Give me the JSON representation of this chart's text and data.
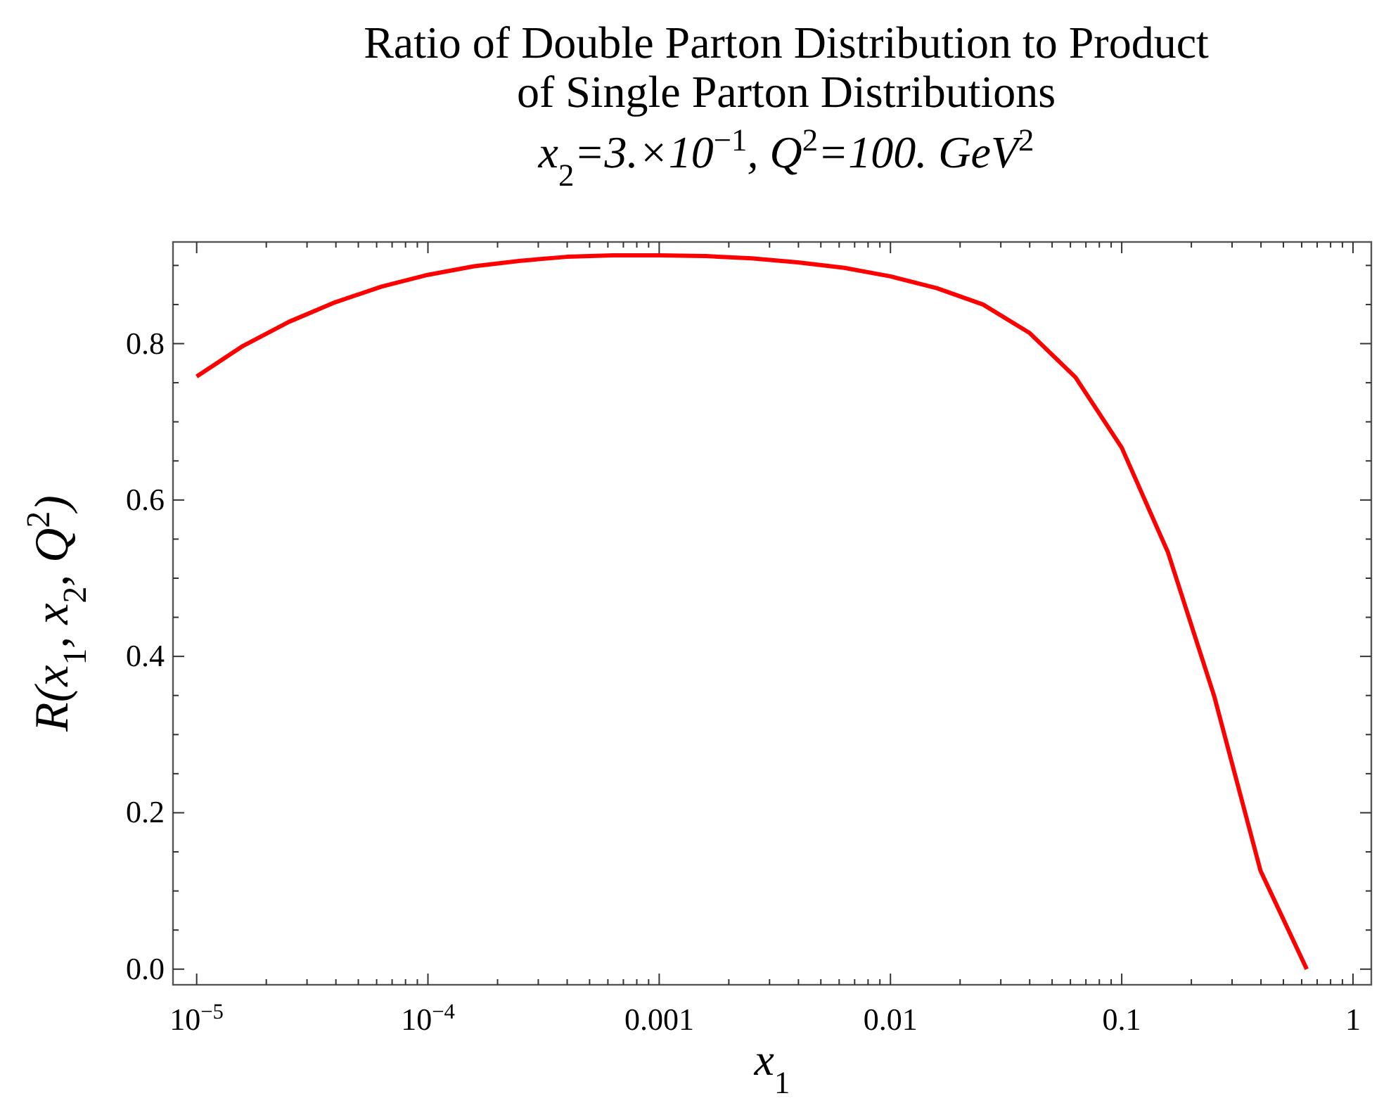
{
  "chart_data": {
    "type": "line",
    "title": "Ratio of Double Parton Distribution to Product\nof Single Parton Distributions",
    "subtitle": "x$_{2}$=3.×10$^{−1}$, Q$^{2}$=100. GeV$^{2}$",
    "xlabel": "x$_{1}$",
    "ylabel": "R(x$_{1}$, x$_{2}$, Q$^{2}$)",
    "log": "x",
    "grid": false,
    "marker": "none",
    "line_style": "solid",
    "x": [
      1e-05,
      1.585e-05,
      2.512e-05,
      3.981e-05,
      6.31e-05,
      0.0001,
      0.0001585,
      0.0002512,
      0.0003981,
      0.000631,
      0.001,
      0.001585,
      0.002512,
      0.003981,
      0.00631,
      0.01,
      0.01585,
      0.02512,
      0.03981,
      0.0631,
      0.1,
      0.1585,
      0.2512,
      0.3981,
      0.631
    ],
    "series": [
      {
        "color": "#ff0000",
        "values": [
          0.758,
          0.797,
          0.828,
          0.853,
          0.873,
          0.888,
          0.899,
          0.906,
          0.911,
          0.913,
          0.913,
          0.912,
          0.909,
          0.904,
          0.897,
          0.886,
          0.871,
          0.85,
          0.814,
          0.757,
          0.667,
          0.533,
          0.349,
          0.126,
          0.0
        ]
      }
    ],
    "xlim": [
      7.9e-06,
      1.2
    ],
    "ylim": [
      -0.02,
      0.93
    ],
    "xticks": [
      {
        "value": 1e-05,
        "label": "10$^{−5}$"
      },
      {
        "value": 2e-05,
        "label": null
      },
      {
        "value": 3e-05,
        "label": null
      },
      {
        "value": 4e-05,
        "label": null
      },
      {
        "value": 5e-05,
        "label": null
      },
      {
        "value": 6e-05,
        "label": null
      },
      {
        "value": 7e-05,
        "label": null
      },
      {
        "value": 8e-05,
        "label": null
      },
      {
        "value": 9e-05,
        "label": null
      },
      {
        "value": 0.0001,
        "label": "10$^{−4}$"
      },
      {
        "value": 0.0002,
        "label": null
      },
      {
        "value": 0.0003,
        "label": null
      },
      {
        "value": 0.0004,
        "label": null
      },
      {
        "value": 0.0005,
        "label": null
      },
      {
        "value": 0.0006,
        "label": null
      },
      {
        "value": 0.0007,
        "label": null
      },
      {
        "value": 0.0008,
        "label": null
      },
      {
        "value": 0.0009,
        "label": null
      },
      0.001,
      {
        "value": 0.002,
        "label": null
      },
      {
        "value": 0.003,
        "label": null
      },
      {
        "value": 0.004,
        "label": null
      },
      {
        "value": 0.005,
        "label": null
      },
      {
        "value": 0.006,
        "label": null
      },
      {
        "value": 0.007,
        "label": null
      },
      {
        "value": 0.008,
        "label": null
      },
      {
        "value": 0.009,
        "label": null
      },
      0.01,
      {
        "value": 0.02,
        "label": null
      },
      {
        "value": 0.03,
        "label": null
      },
      {
        "value": 0.04,
        "label": null
      },
      {
        "value": 0.05,
        "label": null
      },
      {
        "value": 0.06,
        "label": null
      },
      {
        "value": 0.07,
        "label": null
      },
      {
        "value": 0.08,
        "label": null
      },
      {
        "value": 0.09,
        "label": null
      },
      0.1,
      {
        "value": 0.2,
        "label": null
      },
      {
        "value": 0.3,
        "label": null
      },
      {
        "value": 0.4,
        "label": null
      },
      {
        "value": 0.5,
        "label": null
      },
      {
        "value": 0.6,
        "label": null
      },
      {
        "value": 0.7,
        "label": null
      },
      {
        "value": 0.8,
        "label": null
      },
      {
        "value": 0.9,
        "label": null
      },
      1
    ],
    "yticks": [
      {
        "value": 0,
        "label": "0.0"
      },
      {
        "value": 0.05,
        "label": null
      },
      {
        "value": 0.1,
        "label": null
      },
      {
        "value": 0.15,
        "label": null
      },
      0.2,
      {
        "value": 0.25,
        "label": null
      },
      {
        "value": 0.3,
        "label": null
      },
      {
        "value": 0.35,
        "label": null
      },
      0.4,
      {
        "value": 0.45,
        "label": null
      },
      {
        "value": 0.5,
        "label": null
      },
      {
        "value": 0.55,
        "label": null
      },
      0.6,
      {
        "value": 0.65,
        "label": null
      },
      {
        "value": 0.7,
        "label": null
      },
      {
        "value": 0.75,
        "label": null
      },
      0.8,
      {
        "value": 0.85,
        "label": null
      },
      {
        "value": 0.9,
        "label": null
      }
    ]
  }
}
